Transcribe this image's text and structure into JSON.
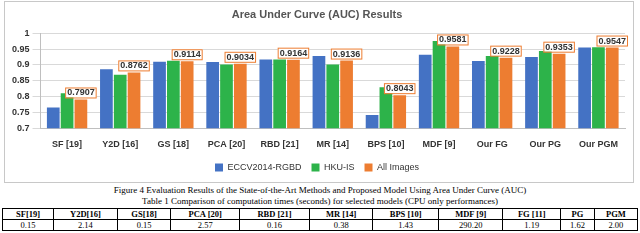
{
  "chart_data": {
    "type": "bar",
    "title": "Area Under Curve (AUC) Results",
    "categories": [
      "SF [19]",
      "Y2D [16]",
      "GS [18]",
      "PCA [20]",
      "RBD [21]",
      "MR [14]",
      "BPS [10]",
      "MDF [9]",
      "Our FG",
      "Our PG",
      "Our PGM"
    ],
    "series": [
      {
        "name": "ECCV2014-RGBD",
        "color": "#4472c4",
        "values": [
          0.765,
          0.886,
          0.91,
          0.909,
          0.917,
          0.928,
          0.742,
          0.932,
          0.912,
          0.925,
          0.955
        ]
      },
      {
        "name": "HKU-IS",
        "color": "#2db34a",
        "values": [
          0.81,
          0.869,
          0.913,
          0.901,
          0.917,
          0.901,
          0.829,
          0.975,
          0.928,
          0.944,
          0.956
        ]
      },
      {
        "name": "All Images",
        "color": "#ed7d31",
        "values": [
          0.7907,
          0.8762,
          0.9114,
          0.9034,
          0.9164,
          0.9136,
          0.8043,
          0.9581,
          0.9228,
          0.9353,
          0.9547
        ],
        "data_labels": true
      }
    ],
    "ylim": [
      0.7,
      1
    ],
    "yticks": [
      0.7,
      0.75,
      0.8,
      0.85,
      0.9,
      0.95,
      1
    ],
    "grid": true,
    "legend": "bottom"
  },
  "figure_caption": "Figure 4 Evaluation Results of the State-of-the-Art Methods and Proposed Model Using Area Under Curve (AUC)",
  "table": {
    "caption": "Table 1 Comparison of computation times (seconds) for selected models (CPU only performances)",
    "header": [
      "SF[19]",
      "Y2D[16]",
      "GS[18]",
      "PCA [20]",
      "RBD [21]",
      "MR [14]",
      "BPS [10]",
      "MDF [9]",
      "FG [11]",
      "PG",
      "PGM"
    ],
    "rows": [
      [
        "0.15",
        "2.14",
        "0.15",
        "2.57",
        "0.16",
        "0.38",
        "1.43",
        "290.20",
        "1.19",
        "1.62",
        "2.00"
      ]
    ]
  }
}
